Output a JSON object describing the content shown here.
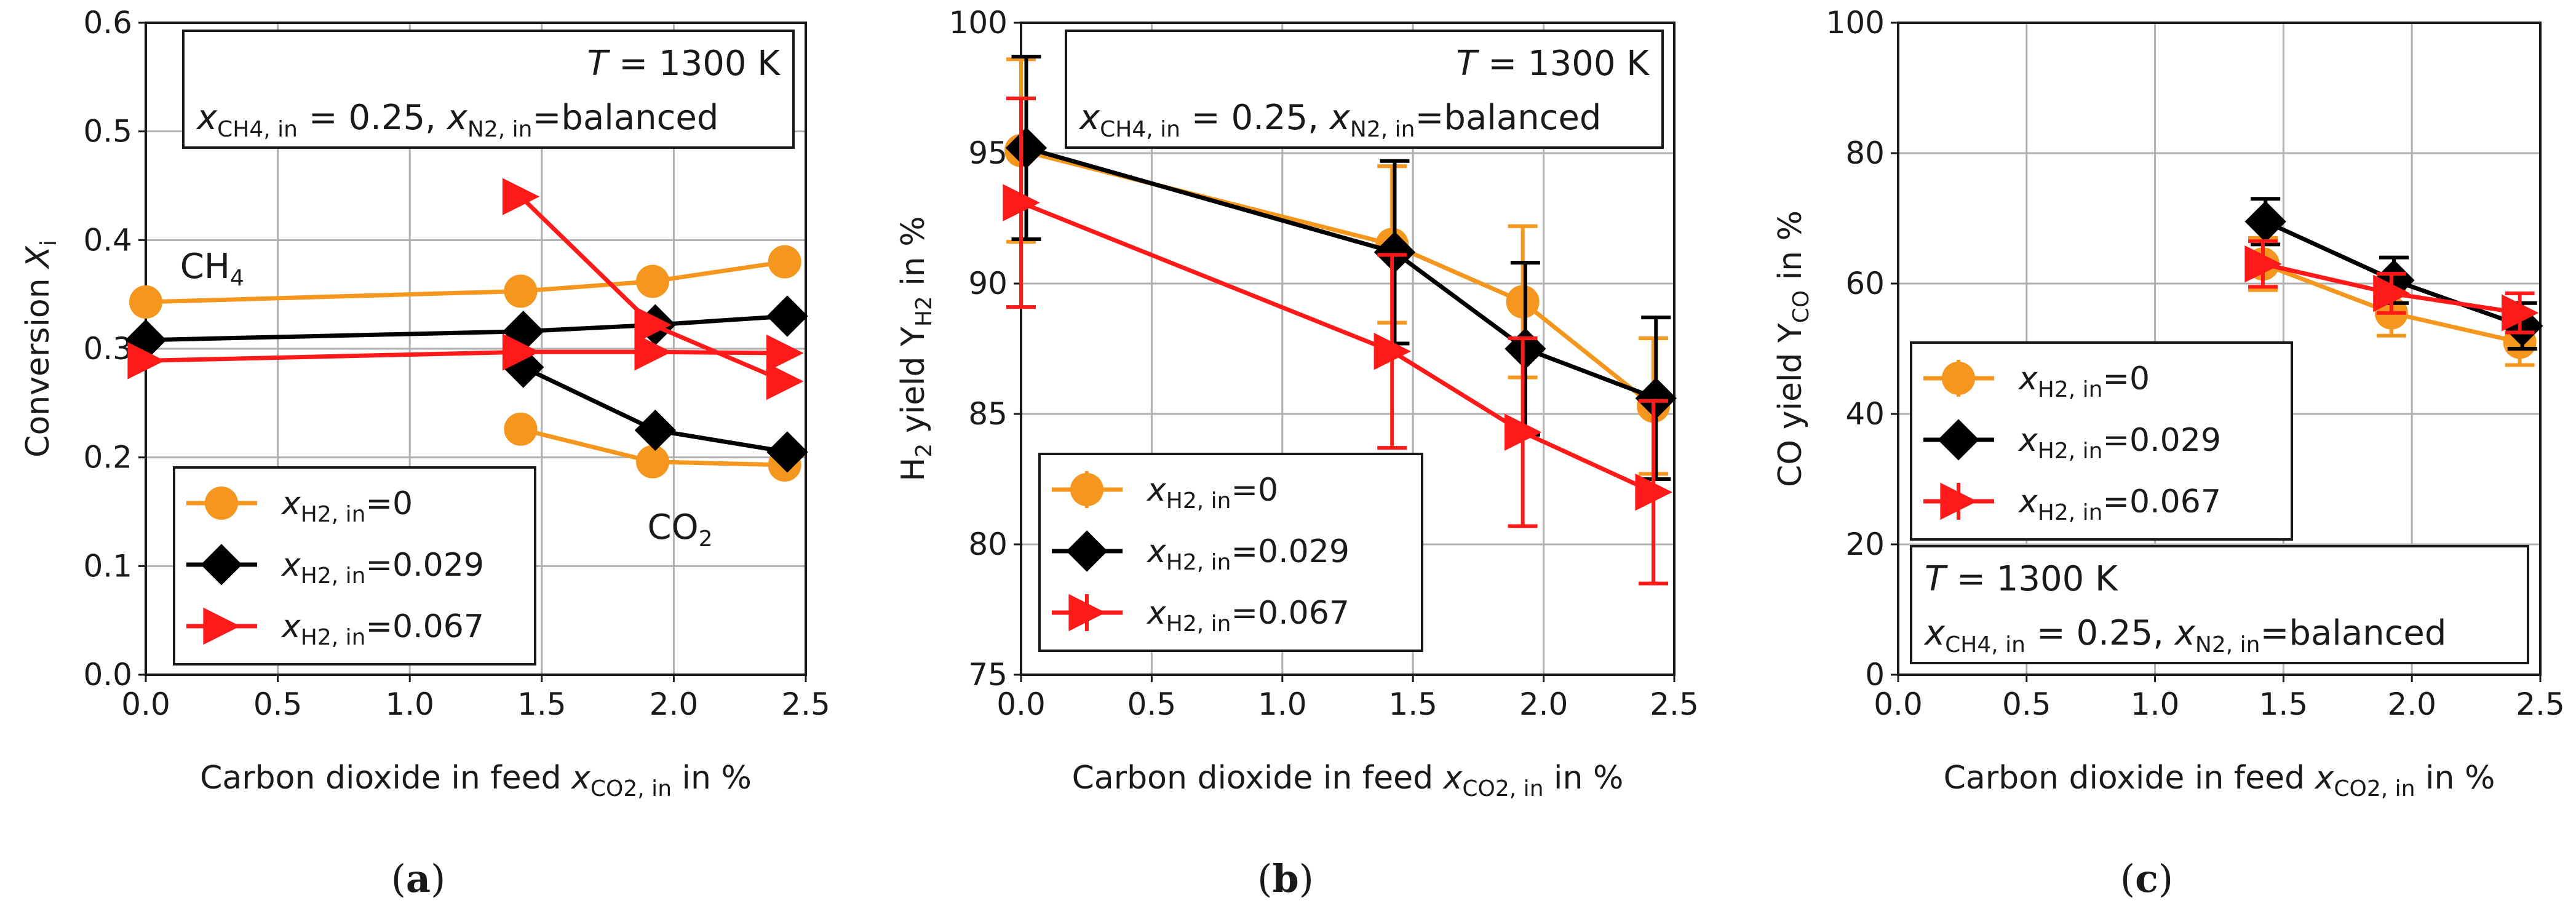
{
  "chart_data": [
    {
      "type": "line",
      "panel_label": "a",
      "xlabel": {
        "main": "Carbon dioxide in feed ",
        "var": "x",
        "sub": "CO2, in",
        "tail": " in %"
      },
      "ylabel": {
        "main": "Conversion ",
        "var": "X",
        "sub": "i",
        "tail": ""
      },
      "xlim": [
        0,
        2.5
      ],
      "ylim": [
        0,
        0.6
      ],
      "xticks": [
        "0.0",
        "0.5",
        "1.0",
        "1.5",
        "2.0",
        "2.5"
      ],
      "yticks": [
        "0.0",
        "0.1",
        "0.2",
        "0.3",
        "0.4",
        "0.5",
        "0.6"
      ],
      "grid": true,
      "legend_placement": "lower-left",
      "conditions": {
        "line1": "T = 1300 K",
        "line2": "xCH4, in = 0.25, xN2, in=balanced"
      },
      "annotations": [
        {
          "text": "CH4",
          "x": 0.13,
          "y": 0.365
        },
        {
          "text": "CO2",
          "x": 1.9,
          "y": 0.125
        }
      ],
      "series": [
        {
          "name": "xH2, in=0",
          "color": "#f5961e",
          "marker": "circle",
          "group": "CH4",
          "x": [
            0,
            1.42,
            1.92,
            2.42
          ],
          "y": [
            0.343,
            0.353,
            0.362,
            0.38
          ]
        },
        {
          "name": "xH2, in=0",
          "color": "#f5961e",
          "marker": "circle",
          "group": "CO2",
          "x": [
            1.42,
            1.92,
            2.42
          ],
          "y": [
            0.226,
            0.196,
            0.193
          ]
        },
        {
          "name": "xH2, in=0.029",
          "color": "#000000",
          "marker": "diamond",
          "group": "CH4",
          "x": [
            0,
            1.43,
            1.93,
            2.43
          ],
          "y": [
            0.308,
            0.316,
            0.322,
            0.33
          ]
        },
        {
          "name": "xH2, in=0.029",
          "color": "#000000",
          "marker": "diamond",
          "group": "CO2",
          "x": [
            1.43,
            1.93,
            2.43
          ],
          "y": [
            0.283,
            0.225,
            0.205
          ]
        },
        {
          "name": "xH2, in=0.067",
          "color": "#ff1a1a",
          "marker": "triangle-right",
          "group": "CH4",
          "x": [
            0,
            1.42,
            1.92,
            2.42
          ],
          "y": [
            0.289,
            0.297,
            0.297,
            0.296
          ]
        },
        {
          "name": "xH2, in=0.067",
          "color": "#ff1a1a",
          "marker": "triangle-right",
          "group": "CO2",
          "x": [
            1.42,
            1.92,
            2.42
          ],
          "y": [
            0.44,
            0.322,
            0.27
          ]
        }
      ]
    },
    {
      "type": "line",
      "panel_label": "b",
      "xlabel": {
        "main": "Carbon dioxide in feed ",
        "var": "x",
        "sub": "CO2, in",
        "tail": " in %"
      },
      "ylabel": {
        "main": "H",
        "var": "",
        "sub": "2",
        "tail": " yield Y",
        "sub2": "H2",
        "tail2": " in %"
      },
      "xlim": [
        0,
        2.5
      ],
      "ylim": [
        75,
        100
      ],
      "xticks": [
        "0.0",
        "0.5",
        "1.0",
        "1.5",
        "2.0",
        "2.5"
      ],
      "yticks": [
        "75",
        "80",
        "85",
        "90",
        "95",
        "100"
      ],
      "grid": true,
      "legend_placement": "lower-left",
      "conditions": {
        "line1": "T = 1300 K",
        "line2": "xCH4, in = 0.25, xN2, in=balanced"
      },
      "series": [
        {
          "name": "xH2, in=0",
          "color": "#f5961e",
          "marker": "circle",
          "x": [
            0,
            1.42,
            1.92,
            2.42
          ],
          "y": [
            95.1,
            91.5,
            89.3,
            85.3
          ],
          "err": [
            3.5,
            3.0,
            2.9,
            2.6
          ]
        },
        {
          "name": "xH2, in=0.029",
          "color": "#000000",
          "marker": "diamond",
          "x": [
            0.02,
            1.43,
            1.93,
            2.43
          ],
          "y": [
            95.2,
            91.2,
            87.5,
            85.6
          ],
          "err": [
            3.5,
            3.5,
            3.3,
            3.1
          ]
        },
        {
          "name": "xH2, in=0.067",
          "color": "#ff1a1a",
          "marker": "triangle-right",
          "x": [
            0,
            1.42,
            1.92,
            2.42
          ],
          "y": [
            93.1,
            87.4,
            84.3,
            82.0
          ],
          "err": [
            4.0,
            3.7,
            3.6,
            3.5
          ]
        }
      ]
    },
    {
      "type": "line",
      "panel_label": "c",
      "xlabel": {
        "main": "Carbon dioxide in feed ",
        "var": "x",
        "sub": "CO2, in",
        "tail": " in %"
      },
      "ylabel": {
        "main": "CO yield Y",
        "var": "",
        "sub": "CO",
        "tail": " in %"
      },
      "xlim": [
        0,
        2.5
      ],
      "ylim": [
        0,
        100
      ],
      "xticks": [
        "0.0",
        "0.5",
        "1.0",
        "1.5",
        "2.0",
        "2.5"
      ],
      "yticks": [
        "0",
        "20",
        "40",
        "60",
        "80",
        "100"
      ],
      "grid": true,
      "legend_placement": "center-left",
      "conditions": {
        "line1": "T = 1300 K",
        "line2": "xCH4, in = 0.25, xN2, in=balanced"
      },
      "series": [
        {
          "name": "xH2, in=0",
          "color": "#f5961e",
          "marker": "circle",
          "x": [
            1.42,
            1.92,
            2.42
          ],
          "y": [
            63.0,
            55.5,
            51.0
          ],
          "err": [
            4.0,
            3.5,
            3.5
          ]
        },
        {
          "name": "xH2, in=0.029",
          "color": "#000000",
          "marker": "diamond",
          "x": [
            1.43,
            1.93,
            2.43
          ],
          "y": [
            69.5,
            60.5,
            53.5
          ],
          "err": [
            3.5,
            3.5,
            3.5
          ]
        },
        {
          "name": "xH2, in=0.067",
          "color": "#ff1a1a",
          "marker": "triangle-right",
          "x": [
            1.42,
            1.92,
            2.42
          ],
          "y": [
            63.0,
            58.5,
            55.5
          ],
          "err": [
            3.5,
            3.0,
            3.0
          ]
        }
      ]
    }
  ]
}
